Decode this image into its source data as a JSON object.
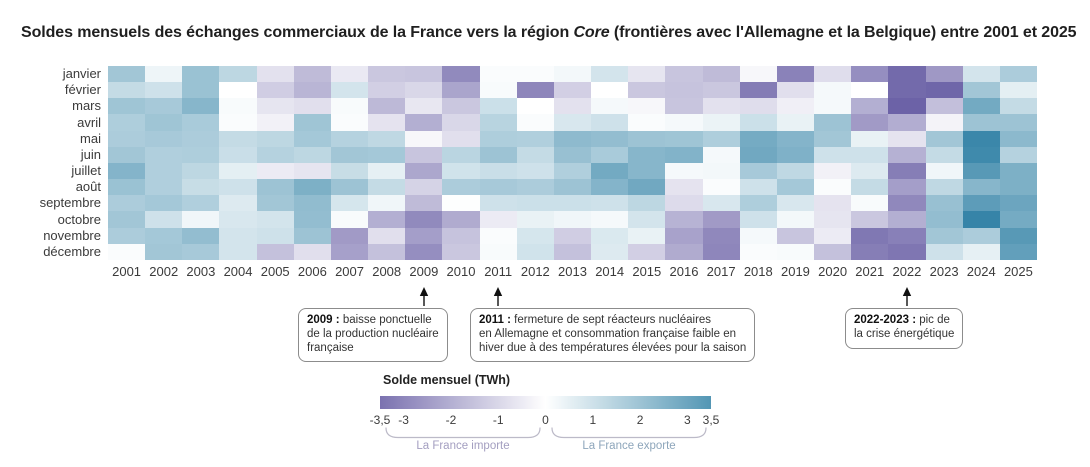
{
  "title": {
    "part1": "Soldes mensuels des échanges commerciaux de la France vers la région ",
    "italic": "Core",
    "part2": " (frontières avec l'Allemagne et la Belgique) entre 2001 et 2025"
  },
  "chart_data": {
    "type": "heatmap",
    "x_years": [
      "2001",
      "2002",
      "2003",
      "2004",
      "2005",
      "2006",
      "2007",
      "2008",
      "2009",
      "2010",
      "2011",
      "2012",
      "2013",
      "2014",
      "2015",
      "2016",
      "2017",
      "2018",
      "2019",
      "2020",
      "2021",
      "2022",
      "2023",
      "2024",
      "2025"
    ],
    "y_months": [
      "janvier",
      "février",
      "mars",
      "avril",
      "mai",
      "juin",
      "juillet",
      "août",
      "septembre",
      "octobre",
      "novembre",
      "décembre"
    ],
    "unit": "TWh",
    "values": [
      [
        1.9,
        0.35,
        2.05,
        1.35,
        -0.75,
        -1.7,
        -0.55,
        -1.4,
        -1.45,
        -2.9,
        0.1,
        0.1,
        0.25,
        0.9,
        -0.65,
        -1.45,
        -1.7,
        -0.2,
        -3.1,
        -0.85,
        -2.8,
        -3.7,
        -2.55,
        0.9,
        1.7
      ],
      [
        1.2,
        1.0,
        2.05,
        0.0,
        -1.25,
        -1.85,
        0.9,
        -1.2,
        -1.0,
        -2.25,
        0.15,
        -3.0,
        -1.2,
        0.0,
        -1.4,
        -1.5,
        -1.4,
        -3.25,
        -0.8,
        0.2,
        0.0,
        -3.7,
        -3.8,
        1.9,
        0.55
      ],
      [
        1.95,
        1.8,
        2.45,
        0.15,
        -0.65,
        -0.8,
        0.15,
        -1.75,
        -0.6,
        -1.4,
        1.05,
        0.0,
        -0.75,
        0.2,
        -0.2,
        -1.45,
        -0.75,
        -0.85,
        -0.4,
        0.2,
        -2.0,
        -3.9,
        -1.6,
        2.85,
        1.2
      ],
      [
        1.65,
        1.95,
        1.75,
        0.1,
        -0.35,
        1.95,
        0.1,
        -0.7,
        -2.0,
        -1.0,
        1.45,
        0.1,
        0.8,
        1.0,
        0.1,
        0.2,
        0.4,
        1.05,
        0.45,
        2.0,
        -2.5,
        -2.05,
        -0.3,
        2.0,
        2.0
      ],
      [
        1.7,
        1.8,
        1.7,
        1.2,
        1.35,
        1.85,
        1.5,
        1.3,
        -0.2,
        -0.8,
        1.65,
        1.6,
        2.3,
        2.2,
        2.0,
        1.95,
        1.65,
        2.8,
        2.5,
        1.9,
        0.45,
        -0.7,
        1.9,
        4.0,
        2.35
      ],
      [
        1.9,
        1.6,
        1.65,
        1.1,
        1.5,
        1.35,
        1.9,
        1.85,
        -1.45,
        1.4,
        2.0,
        1.2,
        2.1,
        1.75,
        2.45,
        2.55,
        0.2,
        2.9,
        2.6,
        1.0,
        1.0,
        -1.95,
        1.2,
        3.9,
        1.5
      ],
      [
        2.5,
        1.6,
        1.35,
        0.55,
        -0.5,
        -0.65,
        1.15,
        0.5,
        -2.2,
        0.95,
        1.1,
        1.0,
        1.6,
        2.85,
        2.45,
        0.2,
        0.25,
        1.8,
        1.3,
        -0.35,
        0.7,
        -3.2,
        0.3,
        3.4,
        2.65
      ],
      [
        2.05,
        1.6,
        1.15,
        1.0,
        2.0,
        2.65,
        2.0,
        1.2,
        -1.1,
        1.7,
        1.8,
        1.7,
        2.0,
        2.5,
        2.9,
        -0.7,
        0.1,
        1.0,
        1.85,
        0.1,
        1.2,
        -2.4,
        1.3,
        2.45,
        2.65
      ],
      [
        1.7,
        1.85,
        1.6,
        0.7,
        1.9,
        2.25,
        0.85,
        0.3,
        -1.7,
        0.05,
        1.0,
        1.05,
        1.05,
        1.0,
        1.35,
        -0.9,
        0.8,
        1.65,
        0.8,
        -0.7,
        0.15,
        -2.95,
        2.1,
        3.3,
        3.0
      ],
      [
        1.9,
        1.0,
        0.3,
        0.8,
        0.9,
        2.2,
        0.15,
        -2.0,
        -2.9,
        -2.1,
        -0.5,
        0.45,
        0.3,
        0.2,
        0.9,
        -1.9,
        -2.5,
        1.0,
        0.25,
        -0.65,
        -1.4,
        -2.0,
        2.2,
        4.1,
        2.8
      ],
      [
        1.7,
        1.85,
        2.2,
        0.9,
        1.0,
        2.0,
        -2.5,
        -0.8,
        -2.4,
        -1.5,
        0.1,
        0.85,
        -1.25,
        0.75,
        0.45,
        -2.3,
        -2.95,
        0.2,
        -1.45,
        -0.5,
        -3.35,
        -3.15,
        1.9,
        1.7,
        3.4
      ],
      [
        0.1,
        1.9,
        1.8,
        0.9,
        -1.55,
        -0.8,
        -2.35,
        -1.55,
        -2.8,
        -1.4,
        0.15,
        0.95,
        -1.55,
        0.7,
        -1.2,
        -2.1,
        -3.0,
        0.1,
        0.15,
        -1.55,
        -3.2,
        -3.4,
        1.0,
        0.5,
        3.2
      ]
    ],
    "colormap": {
      "negative_end": "#554a99",
      "zero": "#ffffff",
      "positive_end": "#22789f",
      "domain": [
        -4.5,
        4.5
      ]
    },
    "legend": {
      "title": "Solde mensuel (TWh)",
      "tick_labels": [
        "-3,5",
        "-3",
        "-2",
        "-1",
        "0",
        "1",
        "2",
        "3",
        "3,5"
      ],
      "tick_values": [
        -3.5,
        -3,
        -2,
        -1,
        0,
        1,
        2,
        3,
        3.5
      ],
      "range": [
        -3.5,
        3.5
      ],
      "left_label": "La France importe",
      "right_label": "La France exporte",
      "left_label_color": "#a39ec0",
      "right_label_color": "#8ea6bb",
      "brace_color": "#bcbac8"
    }
  },
  "annotations": [
    {
      "prefix": "2009 :",
      "lines": [
        "baisse ponctuelle",
        "de la production nucléaire",
        "française"
      ],
      "arrow_year": "2009"
    },
    {
      "prefix": "2011 :",
      "lines": [
        "fermeture de sept réacteurs nucléaires",
        "en Allemagne et consommation française faible en",
        "hiver due à des températures élevées pour la saison"
      ],
      "arrow_year": "2011"
    },
    {
      "prefix": "2022-2023 :",
      "lines": [
        "pic de",
        "la crise énergétique"
      ],
      "arrow_year": "2022"
    }
  ]
}
